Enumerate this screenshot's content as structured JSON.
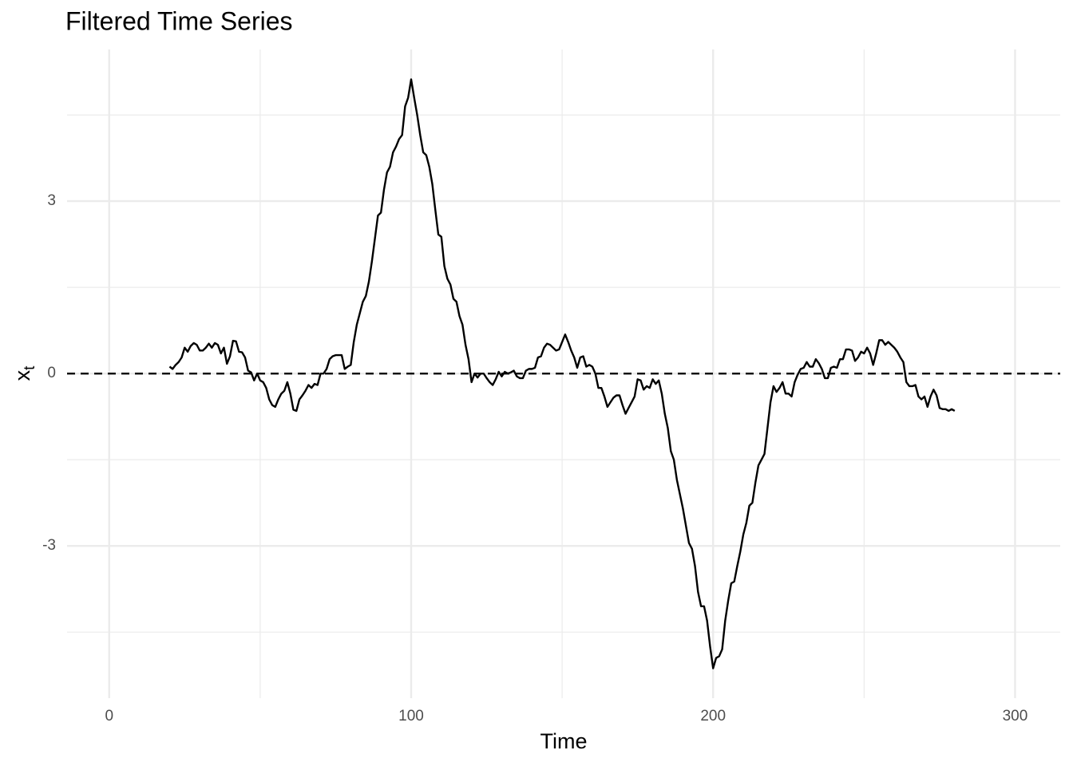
{
  "chart_data": {
    "type": "line",
    "title": "Filtered Time Series",
    "xlabel": "Time",
    "ylabel": "x",
    "ylabel_subscript": "t",
    "xlim": [
      -13.95,
      314.95
    ],
    "xticks": [
      0,
      100,
      200,
      300
    ],
    "minor_xticks": [
      50,
      150,
      250
    ],
    "ylim": [
      -5.65,
      5.64
    ],
    "yticks": [
      -3,
      0,
      3
    ],
    "minor_yticks": [
      -4.5,
      -1.5,
      1.5,
      4.5
    ],
    "grid": true,
    "hline": 0,
    "color": "#000000",
    "x": [
      20,
      21,
      22,
      23,
      24,
      25,
      26,
      27,
      28,
      29,
      30,
      31,
      32,
      33,
      34,
      35,
      36,
      37,
      38,
      39,
      40,
      41,
      42,
      43,
      44,
      45,
      46,
      47,
      48,
      49,
      50,
      51,
      52,
      53,
      54,
      55,
      56,
      57,
      58,
      59,
      60,
      61,
      62,
      63,
      64,
      65,
      66,
      67,
      68,
      69,
      70,
      71,
      72,
      73,
      74,
      75,
      76,
      77,
      78,
      79,
      80,
      81,
      82,
      83,
      84,
      85,
      86,
      87,
      88,
      89,
      90,
      91,
      92,
      93,
      94,
      95,
      96,
      97,
      98,
      99,
      100,
      101,
      102,
      103,
      104,
      105,
      106,
      107,
      108,
      109,
      110,
      111,
      112,
      113,
      114,
      115,
      116,
      117,
      118,
      119,
      120,
      121,
      122,
      123,
      124,
      125,
      126,
      127,
      128,
      129,
      130,
      131,
      132,
      133,
      134,
      135,
      136,
      137,
      138,
      139,
      140,
      141,
      142,
      143,
      144,
      145,
      146,
      147,
      148,
      149,
      150,
      151,
      152,
      153,
      154,
      155,
      156,
      157,
      158,
      159,
      160,
      161,
      162,
      163,
      164,
      165,
      166,
      167,
      168,
      169,
      170,
      171,
      172,
      173,
      174,
      175,
      176,
      177,
      178,
      179,
      180,
      181,
      182,
      183,
      184,
      185,
      186,
      187,
      188,
      189,
      190,
      191,
      192,
      193,
      194,
      195,
      196,
      197,
      198,
      199,
      200,
      201,
      202,
      203,
      204,
      205,
      206,
      207,
      208,
      209,
      210,
      211,
      212,
      213,
      214,
      215,
      216,
      217,
      218,
      219,
      220,
      221,
      222,
      223,
      224,
      225,
      226,
      227,
      228,
      229,
      230,
      231,
      232,
      233,
      234,
      235,
      236,
      237,
      238,
      239,
      240,
      241,
      242,
      243,
      244,
      245,
      246,
      247,
      248,
      249,
      250,
      251,
      252,
      253,
      254,
      255,
      256,
      257,
      258,
      259,
      260,
      261,
      262,
      263,
      264,
      265,
      266,
      267,
      268,
      269,
      270,
      271,
      272,
      273,
      274,
      275,
      276,
      277,
      278,
      279,
      280
    ],
    "values": [
      0.12,
      0.08,
      0.15,
      0.2,
      0.28,
      0.45,
      0.38,
      0.48,
      0.53,
      0.5,
      0.4,
      0.4,
      0.45,
      0.52,
      0.45,
      0.53,
      0.5,
      0.35,
      0.45,
      0.17,
      0.3,
      0.57,
      0.56,
      0.38,
      0.37,
      0.28,
      0.05,
      0.02,
      -0.12,
      0.0,
      -0.12,
      -0.15,
      -0.25,
      -0.45,
      -0.55,
      -0.58,
      -0.45,
      -0.35,
      -0.3,
      -0.15,
      -0.35,
      -0.63,
      -0.65,
      -0.45,
      -0.38,
      -0.3,
      -0.2,
      -0.25,
      -0.18,
      -0.2,
      0.0,
      0.0,
      0.08,
      0.25,
      0.3,
      0.32,
      0.32,
      0.32,
      0.08,
      0.12,
      0.15,
      0.55,
      0.85,
      1.05,
      1.25,
      1.35,
      1.6,
      1.95,
      2.35,
      2.75,
      2.8,
      3.2,
      3.5,
      3.6,
      3.85,
      3.95,
      4.08,
      4.15,
      4.65,
      4.8,
      5.12,
      4.8,
      4.5,
      4.15,
      3.85,
      3.8,
      3.6,
      3.3,
      2.85,
      2.42,
      2.38,
      1.87,
      1.65,
      1.55,
      1.3,
      1.25,
      1.0,
      0.85,
      0.5,
      0.25,
      -0.15,
      0.0,
      -0.07,
      0.0,
      0.0,
      -0.08,
      -0.15,
      -0.2,
      -0.1,
      0.03,
      -0.05,
      0.03,
      0.0,
      0.02,
      0.05,
      -0.05,
      -0.08,
      -0.08,
      0.05,
      0.08,
      0.08,
      0.1,
      0.28,
      0.3,
      0.45,
      0.52,
      0.5,
      0.45,
      0.4,
      0.42,
      0.55,
      0.68,
      0.55,
      0.4,
      0.28,
      0.1,
      0.28,
      0.3,
      0.12,
      0.15,
      0.12,
      0.0,
      -0.25,
      -0.25,
      -0.4,
      -0.58,
      -0.5,
      -0.42,
      -0.38,
      -0.38,
      -0.55,
      -0.7,
      -0.6,
      -0.5,
      -0.4,
      -0.1,
      -0.12,
      -0.28,
      -0.22,
      -0.25,
      -0.1,
      -0.18,
      -0.12,
      -0.35,
      -0.7,
      -0.95,
      -1.35,
      -1.5,
      -1.85,
      -2.1,
      -2.35,
      -2.65,
      -2.95,
      -3.05,
      -3.35,
      -3.8,
      -4.05,
      -4.05,
      -4.3,
      -4.75,
      -5.13,
      -4.95,
      -4.92,
      -4.8,
      -4.3,
      -3.95,
      -3.65,
      -3.62,
      -3.35,
      -3.1,
      -2.8,
      -2.6,
      -2.3,
      -2.25,
      -1.9,
      -1.6,
      -1.5,
      -1.4,
      -0.95,
      -0.5,
      -0.22,
      -0.32,
      -0.25,
      -0.15,
      -0.35,
      -0.35,
      -0.4,
      -0.15,
      -0.02,
      0.08,
      0.1,
      0.2,
      0.12,
      0.12,
      0.25,
      0.18,
      0.08,
      -0.08,
      -0.08,
      0.1,
      0.12,
      0.1,
      0.25,
      0.25,
      0.42,
      0.42,
      0.4,
      0.22,
      0.28,
      0.38,
      0.35,
      0.45,
      0.35,
      0.15,
      0.35,
      0.58,
      0.58,
      0.5,
      0.55,
      0.5,
      0.45,
      0.38,
      0.28,
      0.2,
      -0.15,
      -0.22,
      -0.22,
      -0.2,
      -0.4,
      -0.45,
      -0.4,
      -0.58,
      -0.4,
      -0.28,
      -0.38,
      -0.6,
      -0.62,
      -0.62,
      -0.65,
      -0.62,
      -0.65
    ]
  }
}
